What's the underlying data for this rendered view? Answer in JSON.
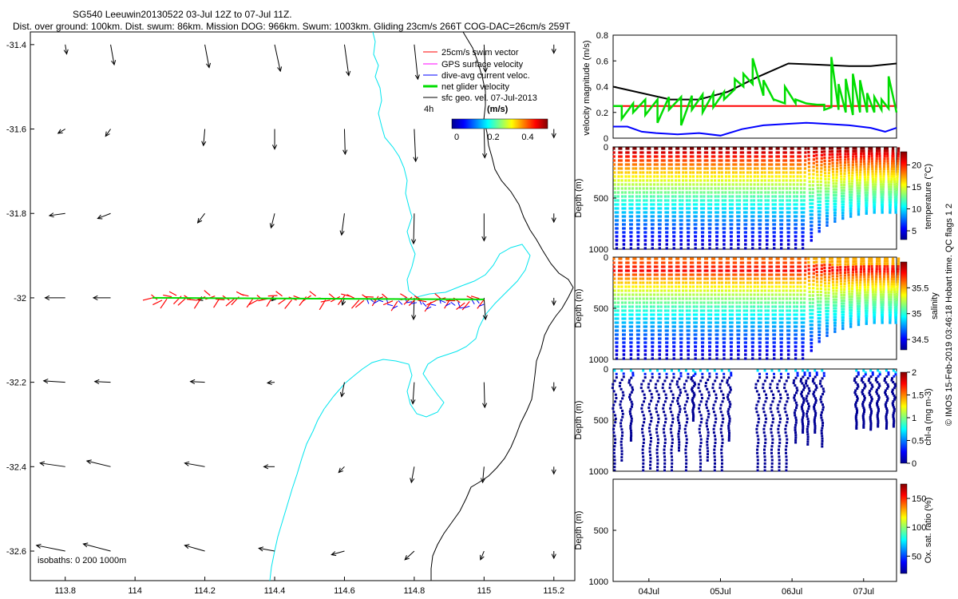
{
  "header": {
    "title_line1": "SG540 Leeuwin20130522 03-Jul 12Z to 07-Jul 11Z.",
    "title_line2": "Dist. over ground: 100km. Dist. swum: 86km. Mission DOG: 966km. Swum: 1003km. Gliding 23cm/s 266T COG-DAC=26cm/s 259T"
  },
  "watermark": "© IMOS 15-Feb-2019 03:46:18 Hobart time. QC flags 1  2",
  "colors": {
    "swim": "#ff0000",
    "gps": "#ff00ff",
    "dac": "#0000ff",
    "net": "#00dd00",
    "sfc": "#000000",
    "isobath_0": "#00e5ee",
    "isobath_1000": "#000000"
  },
  "map": {
    "legend": {
      "swim": "25cm/s swim vector",
      "gps": "GPS surface velocity",
      "dac": "dive-avg current veloc.",
      "net": "net glider velocity",
      "sfc": "sfc geo. vel. 07-Jul-2013",
      "interval": "4h",
      "colorbar_title": "(m/s)",
      "colorbar_ticks": [
        "0",
        "0.2",
        "0.4"
      ]
    },
    "isobaths": "isobaths: 0   200   1000m"
  },
  "chart_data": [
    {
      "type": "quiver",
      "name": "track-map",
      "xlim": [
        113.7,
        115.26
      ],
      "ylim": [
        -32.67,
        -31.37
      ],
      "xticks": [
        113.8,
        114,
        114.2,
        114.4,
        114.6,
        114.8,
        115,
        115.2
      ],
      "xtick_labels": [
        "113.8",
        "114",
        "114.2",
        "114.4",
        "114.6",
        "114.8",
        "115",
        "115.2"
      ],
      "yticks": [
        -31.4,
        -31.6,
        -31.8,
        -32,
        -32.2,
        -32.4,
        -32.6
      ],
      "ytick_labels": [
        "-31.4",
        "-31.6",
        "-31.8",
        "-32",
        "-32.2",
        "-32.4",
        "-32.6"
      ],
      "glider_track": {
        "lat": -32.0,
        "lon_start": 114.05,
        "lon_end": 115.0
      },
      "sfc_vectors": [
        {
          "lon": 113.8,
          "lat": -31.4,
          "u": 0.02,
          "v": -0.13
        },
        {
          "lon": 113.93,
          "lat": -31.4,
          "u": 0.05,
          "v": -0.28
        },
        {
          "lon": 114.2,
          "lat": -31.4,
          "u": 0.06,
          "v": -0.32
        },
        {
          "lon": 114.4,
          "lat": -31.4,
          "u": 0.08,
          "v": -0.37
        },
        {
          "lon": 114.6,
          "lat": -31.4,
          "u": 0.06,
          "v": -0.43
        },
        {
          "lon": 114.8,
          "lat": -31.4,
          "u": 0.05,
          "v": -0.48
        },
        {
          "lon": 115,
          "lat": -31.4,
          "u": 0.02,
          "v": -0.38
        },
        {
          "lon": 115.2,
          "lat": -31.4,
          "u": 0,
          "v": -0.12
        },
        {
          "lon": 113.8,
          "lat": -31.6,
          "u": -0.1,
          "v": -0.06
        },
        {
          "lon": 113.93,
          "lat": -31.6,
          "u": -0.07,
          "v": -0.1
        },
        {
          "lon": 114.2,
          "lat": -31.6,
          "u": -0.02,
          "v": -0.23
        },
        {
          "lon": 114.4,
          "lat": -31.6,
          "u": 0,
          "v": -0.28
        },
        {
          "lon": 114.6,
          "lat": -31.6,
          "u": 0.01,
          "v": -0.35
        },
        {
          "lon": 114.8,
          "lat": -31.6,
          "u": 0.02,
          "v": -0.45
        },
        {
          "lon": 115,
          "lat": -31.6,
          "u": 0.01,
          "v": -0.4
        },
        {
          "lon": 115.2,
          "lat": -31.6,
          "u": 0,
          "v": -0.12
        },
        {
          "lon": 113.8,
          "lat": -31.8,
          "u": -0.22,
          "v": -0.03
        },
        {
          "lon": 113.93,
          "lat": -31.8,
          "u": -0.18,
          "v": -0.07
        },
        {
          "lon": 114.2,
          "lat": -31.8,
          "u": -0.1,
          "v": -0.13
        },
        {
          "lon": 114.4,
          "lat": -31.8,
          "u": -0.05,
          "v": -0.2
        },
        {
          "lon": 114.6,
          "lat": -31.8,
          "u": -0.04,
          "v": -0.3
        },
        {
          "lon": 114.8,
          "lat": -31.8,
          "u": -0.01,
          "v": -0.42
        },
        {
          "lon": 115,
          "lat": -31.8,
          "u": 0,
          "v": -0.38
        },
        {
          "lon": 115.2,
          "lat": -31.8,
          "u": 0,
          "v": -0.12
        },
        {
          "lon": 113.8,
          "lat": -32,
          "u": -0.28,
          "v": 0
        },
        {
          "lon": 113.93,
          "lat": -32,
          "u": -0.24,
          "v": 0
        },
        {
          "lon": 114.2,
          "lat": -32,
          "u": -0.09,
          "v": -0.03
        },
        {
          "lon": 114.4,
          "lat": -32,
          "u": -0.04,
          "v": -0.04
        },
        {
          "lon": 114.6,
          "lat": -32,
          "u": -0.03,
          "v": -0.1
        },
        {
          "lon": 114.8,
          "lat": -32,
          "u": -0.01,
          "v": -0.3
        },
        {
          "lon": 115,
          "lat": -32,
          "u": 0.02,
          "v": -0.3
        },
        {
          "lon": 115.2,
          "lat": -32,
          "u": 0,
          "v": -0.1
        },
        {
          "lon": 113.8,
          "lat": -32.2,
          "u": -0.3,
          "v": 0.02
        },
        {
          "lon": 113.93,
          "lat": -32.2,
          "u": -0.22,
          "v": 0.01
        },
        {
          "lon": 114.2,
          "lat": -32.2,
          "u": -0.2,
          "v": 0.01
        },
        {
          "lon": 114.4,
          "lat": -32.2,
          "u": -0.1,
          "v": -0.01
        },
        {
          "lon": 114.6,
          "lat": -32.2,
          "u": -0.04,
          "v": -0.2
        },
        {
          "lon": 114.8,
          "lat": -32.2,
          "u": -0.02,
          "v": -0.3
        },
        {
          "lon": 115,
          "lat": -32.2,
          "u": 0.01,
          "v": -0.35
        },
        {
          "lon": 115.2,
          "lat": -32.2,
          "u": 0,
          "v": -0.12
        },
        {
          "lon": 113.8,
          "lat": -32.4,
          "u": -0.35,
          "v": 0.05
        },
        {
          "lon": 113.93,
          "lat": -32.4,
          "u": -0.33,
          "v": 0.08
        },
        {
          "lon": 114.2,
          "lat": -32.4,
          "u": -0.28,
          "v": 0.05
        },
        {
          "lon": 114.4,
          "lat": -32.4,
          "u": -0.15,
          "v": 0
        },
        {
          "lon": 114.6,
          "lat": -32.4,
          "u": -0.08,
          "v": -0.08
        },
        {
          "lon": 114.8,
          "lat": -32.4,
          "u": -0.04,
          "v": -0.22
        },
        {
          "lon": 115,
          "lat": -32.4,
          "u": -0.02,
          "v": -0.22
        },
        {
          "lon": 115.2,
          "lat": -32.4,
          "u": 0,
          "v": -0.1
        },
        {
          "lon": 113.8,
          "lat": -32.6,
          "u": -0.4,
          "v": 0.08
        },
        {
          "lon": 113.93,
          "lat": -32.6,
          "u": -0.38,
          "v": 0.1
        },
        {
          "lon": 114.2,
          "lat": -32.6,
          "u": -0.28,
          "v": 0.08
        },
        {
          "lon": 114.4,
          "lat": -32.6,
          "u": -0.22,
          "v": 0.04
        },
        {
          "lon": 114.6,
          "lat": -32.6,
          "u": -0.18,
          "v": -0.05
        },
        {
          "lon": 114.8,
          "lat": -32.6,
          "u": -0.13,
          "v": -0.12
        },
        {
          "lon": 115,
          "lat": -32.6,
          "u": -0.05,
          "v": -0.12
        },
        {
          "lon": 115.2,
          "lat": -32.6,
          "u": 0,
          "v": -0.1
        }
      ]
    },
    {
      "type": "line",
      "name": "velocity-magnitude",
      "ylabel": "velocity magnitude (m/s)",
      "xlim": [
        3.5,
        7.46
      ],
      "ylim": [
        0,
        0.8
      ],
      "yticks": [
        0,
        0.2,
        0.4,
        0.6,
        0.8
      ],
      "ytick_labels": [
        "0",
        "0.2",
        "0.4",
        "0.6",
        "0.8"
      ],
      "series": [
        {
          "name": "sfc geo. vel.",
          "color": "#000000",
          "x": [
            3.5,
            4.3,
            4.7,
            5.1,
            5.5,
            5.95,
            6.4,
            6.8,
            7.1,
            7.46
          ],
          "y": [
            0.4,
            0.3,
            0.3,
            0.36,
            0.47,
            0.58,
            0.57,
            0.56,
            0.56,
            0.58
          ]
        },
        {
          "name": "swim",
          "color": "#ff0000",
          "x": [
            3.5,
            7.46
          ],
          "y": [
            0.25,
            0.25
          ]
        },
        {
          "name": "dive-avg current veloc.",
          "color": "#0000ff",
          "x": [
            3.5,
            3.7,
            3.9,
            4.1,
            4.4,
            4.7,
            5.0,
            5.3,
            5.6,
            5.9,
            6.2,
            6.5,
            6.8,
            7.1,
            7.3,
            7.46
          ],
          "y": [
            0.09,
            0.09,
            0.05,
            0.04,
            0.03,
            0.04,
            0.02,
            0.07,
            0.1,
            0.11,
            0.12,
            0.11,
            0.1,
            0.08,
            0.05,
            0.08
          ]
        },
        {
          "name": "net glider velocity",
          "color": "#00dd00",
          "x": [
            3.5,
            3.62,
            3.62,
            3.78,
            3.78,
            3.95,
            3.95,
            4.12,
            4.12,
            4.28,
            4.28,
            4.45,
            4.45,
            4.6,
            4.6,
            4.75,
            4.75,
            4.9,
            4.9,
            5.05,
            5.05,
            5.2,
            5.2,
            5.32,
            5.32,
            5.45,
            5.45,
            5.6,
            5.6,
            5.75,
            5.75,
            5.9,
            5.9,
            6.05,
            6.05,
            6.2,
            6.2,
            6.35,
            6.35,
            6.45,
            6.45,
            6.55,
            6.55,
            6.65,
            6.65,
            6.75,
            6.75,
            6.85,
            6.85,
            6.95,
            6.95,
            7.05,
            7.05,
            7.15,
            7.15,
            7.25,
            7.25,
            7.35,
            7.35,
            7.46
          ],
          "y": [
            0.25,
            0.25,
            0.15,
            0.27,
            0.2,
            0.3,
            0.18,
            0.3,
            0.12,
            0.32,
            0.22,
            0.32,
            0.1,
            0.33,
            0.22,
            0.34,
            0.2,
            0.35,
            0.24,
            0.36,
            0.3,
            0.38,
            0.46,
            0.4,
            0.5,
            0.42,
            0.62,
            0.33,
            0.45,
            0.29,
            0.3,
            0.27,
            0.4,
            0.27,
            0.3,
            0.27,
            0.27,
            0.26,
            0.26,
            0.26,
            0.22,
            0.24,
            0.63,
            0.22,
            0.42,
            0.2,
            0.46,
            0.18,
            0.5,
            0.2,
            0.45,
            0.2,
            0.35,
            0.2,
            0.32,
            0.22,
            0.3,
            0.23,
            0.48,
            0.2
          ]
        }
      ]
    },
    {
      "type": "scatter",
      "name": "temperature-section",
      "ylabel": "Depth (m)",
      "ylim": [
        1000,
        0
      ],
      "yticks": [
        0,
        500,
        1000
      ],
      "ytick_labels": [
        "0",
        "500",
        "1000"
      ],
      "colorbar_label": "temperature (°C)",
      "colorbar_ticks": [
        "20",
        "15",
        "10",
        "5"
      ],
      "colorbar_range": [
        3,
        23
      ],
      "dives": [
        {
          "t": 3.55,
          "maxd": 1000
        },
        {
          "t": 3.65,
          "maxd": 1000
        },
        {
          "t": 3.75,
          "maxd": 1000
        },
        {
          "t": 3.85,
          "maxd": 1000
        },
        {
          "t": 3.95,
          "maxd": 1000
        },
        {
          "t": 4.05,
          "maxd": 1000
        },
        {
          "t": 4.15,
          "maxd": 1000
        },
        {
          "t": 4.25,
          "maxd": 1000
        },
        {
          "t": 4.35,
          "maxd": 1000
        },
        {
          "t": 4.45,
          "maxd": 1000
        },
        {
          "t": 4.55,
          "maxd": 1000
        },
        {
          "t": 4.65,
          "maxd": 1000
        },
        {
          "t": 4.75,
          "maxd": 1000
        },
        {
          "t": 4.85,
          "maxd": 1000
        },
        {
          "t": 4.95,
          "maxd": 1000
        },
        {
          "t": 5.05,
          "maxd": 1000
        },
        {
          "t": 5.15,
          "maxd": 1000
        },
        {
          "t": 5.25,
          "maxd": 1000
        },
        {
          "t": 5.35,
          "maxd": 1000
        },
        {
          "t": 5.45,
          "maxd": 1000
        },
        {
          "t": 5.55,
          "maxd": 1000
        },
        {
          "t": 5.65,
          "maxd": 1000
        },
        {
          "t": 5.75,
          "maxd": 1000
        },
        {
          "t": 5.85,
          "maxd": 1000
        },
        {
          "t": 5.95,
          "maxd": 1000
        },
        {
          "t": 6.05,
          "maxd": 1000
        },
        {
          "t": 6.15,
          "maxd": 1000
        },
        {
          "t": 6.27,
          "maxd": 920
        },
        {
          "t": 6.38,
          "maxd": 830
        },
        {
          "t": 6.49,
          "maxd": 770
        },
        {
          "t": 6.6,
          "maxd": 730
        },
        {
          "t": 6.71,
          "maxd": 700
        },
        {
          "t": 6.82,
          "maxd": 680
        },
        {
          "t": 6.93,
          "maxd": 660
        },
        {
          "t": 7.04,
          "maxd": 650
        },
        {
          "t": 7.15,
          "maxd": 640
        },
        {
          "t": 7.26,
          "maxd": 640
        },
        {
          "t": 7.37,
          "maxd": 640
        },
        {
          "t": 7.45,
          "maxd": 640
        }
      ]
    },
    {
      "type": "scatter",
      "name": "salinity-section",
      "ylabel": "Depth (m)",
      "ylim": [
        1000,
        0
      ],
      "yticks": [
        0,
        500,
        1000
      ],
      "ytick_labels": [
        "0",
        "500",
        "1000"
      ],
      "colorbar_label": "salinity",
      "colorbar_ticks": [
        "35.5",
        "35",
        "34.5"
      ],
      "colorbar_range": [
        34.3,
        36.0
      ],
      "dives": "same as temperature-section"
    },
    {
      "type": "scatter",
      "name": "chla-section",
      "ylabel": "Depth (m)",
      "ylim": [
        1000,
        0
      ],
      "yticks": [
        0,
        500,
        1000
      ],
      "ytick_labels": [
        "0",
        "500",
        "1000"
      ],
      "colorbar_label": "chl-a (mg m-3)",
      "colorbar_ticks": [
        "2",
        "1.5",
        "1",
        "0.5",
        "0"
      ],
      "colorbar_range": [
        0,
        2
      ],
      "profiles": [
        {
          "t": 3.52,
          "maxd": 1000
        },
        {
          "t": 3.62,
          "maxd": 900
        },
        {
          "t": 3.75,
          "maxd": 700
        },
        {
          "t": 3.92,
          "maxd": 1000
        },
        {
          "t": 4.02,
          "maxd": 980
        },
        {
          "t": 4.12,
          "maxd": 1000
        },
        {
          "t": 4.22,
          "maxd": 1000
        },
        {
          "t": 4.32,
          "maxd": 1000
        },
        {
          "t": 4.42,
          "maxd": 800
        },
        {
          "t": 4.52,
          "maxd": 1000
        },
        {
          "t": 4.62,
          "maxd": 500
        },
        {
          "t": 4.72,
          "maxd": 1000
        },
        {
          "t": 4.82,
          "maxd": 900
        },
        {
          "t": 4.92,
          "maxd": 1000
        },
        {
          "t": 5.02,
          "maxd": 1000
        },
        {
          "t": 5.12,
          "maxd": 700
        },
        {
          "t": 5.52,
          "maxd": 1000
        },
        {
          "t": 5.62,
          "maxd": 1000
        },
        {
          "t": 5.72,
          "maxd": 1000
        },
        {
          "t": 5.82,
          "maxd": 1000
        },
        {
          "t": 5.92,
          "maxd": 1000
        },
        {
          "t": 6.05,
          "maxd": 720
        },
        {
          "t": 6.15,
          "maxd": 620
        },
        {
          "t": 6.22,
          "maxd": 740
        },
        {
          "t": 6.32,
          "maxd": 620
        },
        {
          "t": 6.42,
          "maxd": 760
        },
        {
          "t": 6.9,
          "maxd": 580
        },
        {
          "t": 7.0,
          "maxd": 570
        },
        {
          "t": 7.1,
          "maxd": 590
        },
        {
          "t": 7.2,
          "maxd": 560
        },
        {
          "t": 7.32,
          "maxd": 580
        },
        {
          "t": 7.42,
          "maxd": 560
        }
      ]
    },
    {
      "type": "scatter",
      "name": "oxygen-section",
      "ylabel": "Depth (m)",
      "ylim": [
        1000,
        0
      ],
      "yticks": [
        500,
        1000
      ],
      "ytick_labels": [
        "500",
        "1000"
      ],
      "colorbar_label": "Ox. sat. ratio (%)",
      "colorbar_ticks": [
        "150",
        "100",
        "50"
      ],
      "colorbar_range": [
        20,
        175
      ],
      "xticks": [
        4,
        5,
        6,
        7
      ],
      "xtick_labels": [
        "04Jul",
        "05Jul",
        "06Jul",
        "07Jul"
      ],
      "values": []
    }
  ]
}
